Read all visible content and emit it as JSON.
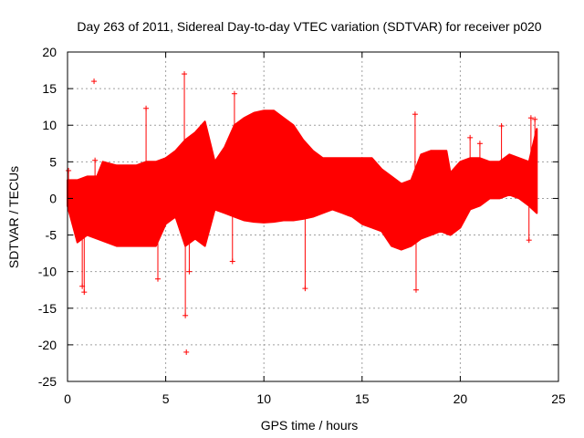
{
  "chart_data": {
    "type": "scatter",
    "title": "Day 263 of 2011, Sidereal Day-to-day VTEC variation (SDTVAR) for receiver p020",
    "xlabel": "GPS time / hours",
    "ylabel": "SDTVAR / TECUs",
    "xlim": [
      0,
      25
    ],
    "ylim": [
      -25,
      20
    ],
    "xticks": [
      0,
      5,
      10,
      15,
      20,
      25
    ],
    "yticks": [
      -25,
      -20,
      -15,
      -10,
      -5,
      0,
      5,
      10,
      15,
      20
    ],
    "grid": true,
    "series": [
      {
        "name": "SDTVAR",
        "color": "#ff0000",
        "marker": "+",
        "upper_envelope": [
          [
            0.0,
            2.5
          ],
          [
            0.5,
            2.5
          ],
          [
            1.0,
            3.0
          ],
          [
            1.5,
            3.0
          ],
          [
            1.8,
            5.0
          ],
          [
            2.5,
            4.5
          ],
          [
            3.5,
            4.5
          ],
          [
            4.0,
            5.0
          ],
          [
            4.5,
            5.0
          ],
          [
            5.0,
            5.5
          ],
          [
            5.5,
            6.5
          ],
          [
            6.0,
            8.0
          ],
          [
            6.5,
            9.0
          ],
          [
            7.0,
            10.5
          ],
          [
            7.5,
            5.0
          ],
          [
            8.0,
            7.0
          ],
          [
            8.5,
            10.0
          ],
          [
            9.0,
            11.0
          ],
          [
            9.5,
            11.7
          ],
          [
            10.0,
            12.0
          ],
          [
            10.5,
            12.0
          ],
          [
            11.0,
            11.0
          ],
          [
            11.5,
            10.0
          ],
          [
            12.0,
            8.0
          ],
          [
            12.5,
            6.5
          ],
          [
            13.0,
            5.5
          ],
          [
            13.5,
            5.5
          ],
          [
            14.0,
            5.5
          ],
          [
            15.0,
            5.5
          ],
          [
            15.5,
            5.5
          ],
          [
            16.0,
            4.0
          ],
          [
            16.5,
            3.0
          ],
          [
            17.0,
            2.0
          ],
          [
            17.5,
            2.5
          ],
          [
            18.0,
            6.0
          ],
          [
            18.5,
            6.5
          ],
          [
            19.0,
            6.5
          ],
          [
            19.3,
            6.5
          ],
          [
            19.5,
            3.5
          ],
          [
            20.0,
            5.0
          ],
          [
            20.5,
            5.5
          ],
          [
            21.0,
            5.5
          ],
          [
            21.5,
            5.0
          ],
          [
            22.0,
            5.0
          ],
          [
            22.5,
            6.0
          ],
          [
            23.0,
            5.5
          ],
          [
            23.5,
            5.0
          ],
          [
            23.9,
            9.5
          ]
        ],
        "lower_envelope": [
          [
            0.0,
            -1.0
          ],
          [
            0.5,
            -6.0
          ],
          [
            1.0,
            -5.0
          ],
          [
            1.5,
            -5.5
          ],
          [
            2.0,
            -6.0
          ],
          [
            2.5,
            -6.5
          ],
          [
            3.5,
            -6.5
          ],
          [
            4.0,
            -6.5
          ],
          [
            4.5,
            -6.5
          ],
          [
            5.0,
            -3.5
          ],
          [
            5.5,
            -2.5
          ],
          [
            6.0,
            -6.5
          ],
          [
            6.5,
            -5.5
          ],
          [
            7.0,
            -6.5
          ],
          [
            7.5,
            -1.5
          ],
          [
            8.0,
            -2.0
          ],
          [
            8.5,
            -2.5
          ],
          [
            9.0,
            -3.0
          ],
          [
            9.5,
            -3.2
          ],
          [
            10.0,
            -3.3
          ],
          [
            10.5,
            -3.2
          ],
          [
            11.0,
            -3.0
          ],
          [
            11.5,
            -3.0
          ],
          [
            12.0,
            -2.8
          ],
          [
            12.5,
            -2.5
          ],
          [
            13.0,
            -2.0
          ],
          [
            13.5,
            -1.5
          ],
          [
            14.0,
            -2.0
          ],
          [
            14.5,
            -2.5
          ],
          [
            15.0,
            -3.5
          ],
          [
            15.5,
            -4.0
          ],
          [
            16.0,
            -4.5
          ],
          [
            16.5,
            -6.5
          ],
          [
            17.0,
            -7.0
          ],
          [
            17.5,
            -6.5
          ],
          [
            18.0,
            -5.5
          ],
          [
            18.5,
            -5.0
          ],
          [
            19.0,
            -4.5
          ],
          [
            19.5,
            -5.0
          ],
          [
            20.0,
            -4.0
          ],
          [
            20.5,
            -1.5
          ],
          [
            21.0,
            -1.0
          ],
          [
            21.5,
            0.0
          ],
          [
            22.0,
            0.0
          ],
          [
            22.5,
            0.5
          ],
          [
            23.0,
            0.0
          ],
          [
            23.5,
            -1.0
          ],
          [
            23.9,
            -2.0
          ]
        ],
        "outliers": [
          [
            0.05,
            3.8
          ],
          [
            0.75,
            -12.0
          ],
          [
            0.85,
            -12.8
          ],
          [
            1.35,
            16.0
          ],
          [
            1.4,
            5.2
          ],
          [
            4.0,
            12.3
          ],
          [
            4.6,
            -11.0
          ],
          [
            5.95,
            17.0
          ],
          [
            6.0,
            -16.0
          ],
          [
            6.05,
            -21.0
          ],
          [
            6.2,
            -10.0
          ],
          [
            8.4,
            -8.6
          ],
          [
            8.5,
            14.3
          ],
          [
            12.1,
            -12.3
          ],
          [
            17.7,
            11.5
          ],
          [
            17.75,
            -12.5
          ],
          [
            20.5,
            8.3
          ],
          [
            21.0,
            7.5
          ],
          [
            22.1,
            9.9
          ],
          [
            23.6,
            11.0
          ],
          [
            23.8,
            10.8
          ],
          [
            23.5,
            -5.7
          ]
        ]
      }
    ]
  }
}
